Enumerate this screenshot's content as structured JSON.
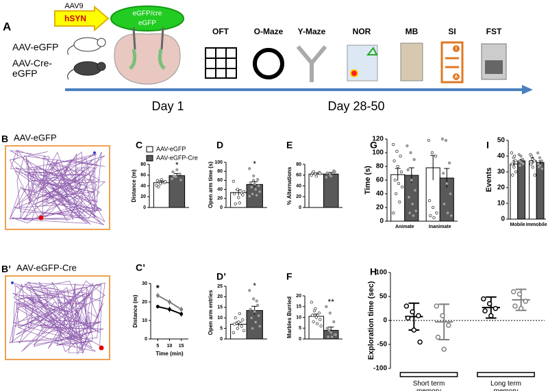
{
  "figure_a": {
    "label": "A",
    "vector": "AAV9",
    "promoter": "hSYN",
    "construct": [
      "eGFP/cre",
      "eGFP"
    ],
    "groups": [
      "AAV-eGFP",
      "AAV-Cre-eGFP"
    ],
    "tests": [
      "OFT",
      "O-Maze",
      "Y-Maze",
      "NOR",
      "MB",
      "SI",
      "FST"
    ],
    "si_labels": [
      "I",
      "A"
    ],
    "timepoints": [
      "Day 1",
      "Day 28-50"
    ]
  },
  "figure_b": [
    {
      "label": "B",
      "title": "AAV-eGFP"
    },
    {
      "label": "B’",
      "title": "AAV-eGFP-Cre"
    }
  ],
  "chart_data": [
    {
      "type": "bar",
      "panel": "C",
      "ylabel": "Distance (m)",
      "ylim": [
        0,
        80
      ],
      "yticks": [
        0,
        20,
        40,
        60,
        80
      ],
      "legend": true,
      "annotation": "*",
      "series": [
        {
          "name": "AAV-eGFP",
          "color": "#ffffff",
          "point_color": "#000000",
          "values": [
            46
          ],
          "errors": [
            3
          ],
          "points": [
            [
              41,
              44,
              46,
              50,
              52,
              48,
              38
            ]
          ]
        },
        {
          "name": "AAV-eGFP-Cre",
          "color": "#595959",
          "point_color": "#a6a6a6",
          "values": [
            59
          ],
          "errors": [
            4
          ],
          "points": [
            [
              53,
              57,
              62,
              66,
              70,
              51,
              58
            ]
          ]
        }
      ]
    },
    {
      "type": "bar",
      "panel": "D",
      "ylabel": "Open arm time (s)",
      "ylim": [
        0,
        100
      ],
      "yticks": [
        0,
        20,
        40,
        60,
        80,
        100
      ],
      "annotation": "*",
      "series": [
        {
          "color": "#ffffff",
          "point_color": "#000000",
          "values": [
            33
          ],
          "errors": [
            6
          ],
          "points": [
            [
              58,
              40,
              32,
              30,
              22,
              28,
              8,
              10,
              35
            ]
          ]
        },
        {
          "color": "#595959",
          "point_color": "#a6a6a6",
          "values": [
            51
          ],
          "errors": [
            6
          ],
          "points": [
            [
              86,
              70,
              62,
              55,
              52,
              48,
              45,
              40,
              35,
              30,
              27,
              25,
              60
            ]
          ]
        }
      ]
    },
    {
      "type": "bar",
      "panel": "E",
      "ylabel": "% Alternations",
      "ylim": [
        0,
        80
      ],
      "yticks": [
        0,
        20,
        40,
        60,
        80
      ],
      "series": [
        {
          "color": "#ffffff",
          "point_color": "#000000",
          "values": [
            62
          ],
          "errors": [
            2
          ],
          "points": [
            [
              60,
              62,
              65,
              64,
              58,
              63,
              66
            ]
          ]
        },
        {
          "color": "#595959",
          "point_color": "#a6a6a6",
          "values": [
            62
          ],
          "errors": [
            3
          ],
          "points": [
            [
              56,
              60,
              68,
              64,
              58,
              66
            ]
          ]
        }
      ]
    },
    {
      "type": "bar",
      "panel": "G",
      "ylabel": "Time (s)",
      "ylim": [
        0,
        120
      ],
      "yticks": [
        0,
        20,
        40,
        60,
        80,
        100,
        120
      ],
      "categories": [
        "Animate",
        "Inanimate"
      ],
      "series": [
        {
          "color": "#ffffff",
          "point_color": "#000000",
          "values": [
            68,
            78
          ],
          "errors": [
            9,
            18
          ],
          "points": [
            [
              112,
              102,
              95,
              88,
              80,
              72,
              60,
              55,
              50,
              40,
              28,
              12
            ],
            [
              118,
              100,
              95,
              30,
              20,
              12,
              8,
              5
            ]
          ]
        },
        {
          "color": "#595959",
          "point_color": "#a6a6a6",
          "values": [
            67,
            63
          ],
          "errors": [
            11,
            14
          ],
          "points": [
            [
              110,
              100,
              90,
              75,
              60,
              45,
              35,
              25,
              15,
              12,
              8
            ],
            [
              120,
              118,
              85,
              70,
              55,
              40,
              25,
              12,
              8
            ]
          ]
        }
      ]
    },
    {
      "type": "bar",
      "panel": "I",
      "ylabel": "Events",
      "ylim": [
        0,
        50
      ],
      "yticks": [
        0,
        10,
        20,
        30,
        40,
        50
      ],
      "categories": [
        "Mobile",
        "Immobile"
      ],
      "series": [
        {
          "color": "#ffffff",
          "point_color": "#000000",
          "values": [
            35,
            37
          ],
          "errors": [
            2,
            2
          ],
          "points": [
            [
              42,
              39,
              37,
              35,
              33,
              30,
              28,
              40
            ],
            [
              41,
              38,
              37,
              35,
              33,
              28,
              40
            ]
          ]
        },
        {
          "color": "#595959",
          "point_color": "#a6a6a6",
          "values": [
            37,
            36
          ],
          "errors": [
            1,
            1
          ],
          "points": [
            [
              41,
              40,
              38,
              37,
              36,
              35,
              34
            ],
            [
              42,
              39,
              37,
              35,
              34,
              32,
              33
            ]
          ]
        }
      ]
    },
    {
      "type": "line",
      "panel": "C’",
      "ylabel": "Distance (m)",
      "xlabel": "Time (min)",
      "x": [
        5,
        10,
        15
      ],
      "xlim": [
        2,
        18
      ],
      "xticks": [
        5,
        10,
        15
      ],
      "ylim": [
        0,
        30
      ],
      "yticks": [
        0,
        10,
        20,
        30
      ],
      "annotation": "*",
      "series": [
        {
          "color": "#000000",
          "values": [
            17.5,
            16,
            13.5
          ],
          "errors": [
            1,
            1.5,
            1.5
          ]
        },
        {
          "color": "#7f7f7f",
          "values": [
            23.5,
            20,
            16
          ],
          "errors": [
            1.5,
            1.5,
            1.5
          ]
        }
      ]
    },
    {
      "type": "bar",
      "panel": "D’",
      "ylabel": "Open arm entries",
      "ylim": [
        0,
        25
      ],
      "yticks": [
        0,
        5,
        10,
        15,
        20,
        25
      ],
      "annotation": "*",
      "series": [
        {
          "color": "#ffffff",
          "point_color": "#000000",
          "values": [
            7
          ],
          "errors": [
            1
          ],
          "points": [
            [
              3,
              5,
              6,
              7,
              8,
              9,
              10,
              12,
              4
            ]
          ]
        },
        {
          "color": "#595959",
          "point_color": "#a6a6a6",
          "values": [
            13.5
          ],
          "errors": [
            2
          ],
          "points": [
            [
              23,
              19,
              16,
              14,
              13,
              11,
              10,
              8,
              6,
              5,
              18
            ]
          ]
        }
      ]
    },
    {
      "type": "bar",
      "panel": "F",
      "ylabel": "Marbles Burried",
      "ylim": [
        0,
        20
      ],
      "yticks": [
        0,
        5,
        10,
        15,
        20
      ],
      "annotation": "**",
      "series": [
        {
          "color": "#ffffff",
          "point_color": "#000000",
          "values": [
            10.5
          ],
          "errors": [
            1
          ],
          "points": [
            [
              17,
              14,
              12,
              11,
              10,
              9,
              8,
              7,
              6,
              13
            ]
          ]
        },
        {
          "color": "#595959",
          "point_color": "#a6a6a6",
          "values": [
            4
          ],
          "errors": [
            1.5
          ],
          "points": [
            [
              15,
              12,
              8,
              5,
              3,
              2,
              1,
              1,
              2,
              4
            ]
          ]
        }
      ]
    },
    {
      "type": "dot",
      "panel": "H",
      "ylabel": "Exploration time (sec)",
      "ylim": [
        -100,
        100
      ],
      "yticks": [
        -100,
        -50,
        0,
        50,
        100
      ],
      "zero_line": true,
      "categories": [
        "Short term memory",
        "Long term memory"
      ],
      "series": [
        {
          "color": "#000000",
          "values": [
            8,
            27
          ],
          "errors": [
            28,
            22
          ],
          "points": [
            [
              30,
              18,
              10,
              5,
              -20,
              -45
            ],
            [
              45,
              35,
              25,
              20,
              10
            ]
          ]
        },
        {
          "color": "#7f7f7f",
          "values": [
            -3,
            43
          ],
          "errors": [
            37,
            22
          ],
          "points": [
            [
              30,
              10,
              -10,
              -35,
              -60
            ],
            [
              60,
              55,
              40,
              30,
              25
            ]
          ]
        }
      ]
    }
  ]
}
